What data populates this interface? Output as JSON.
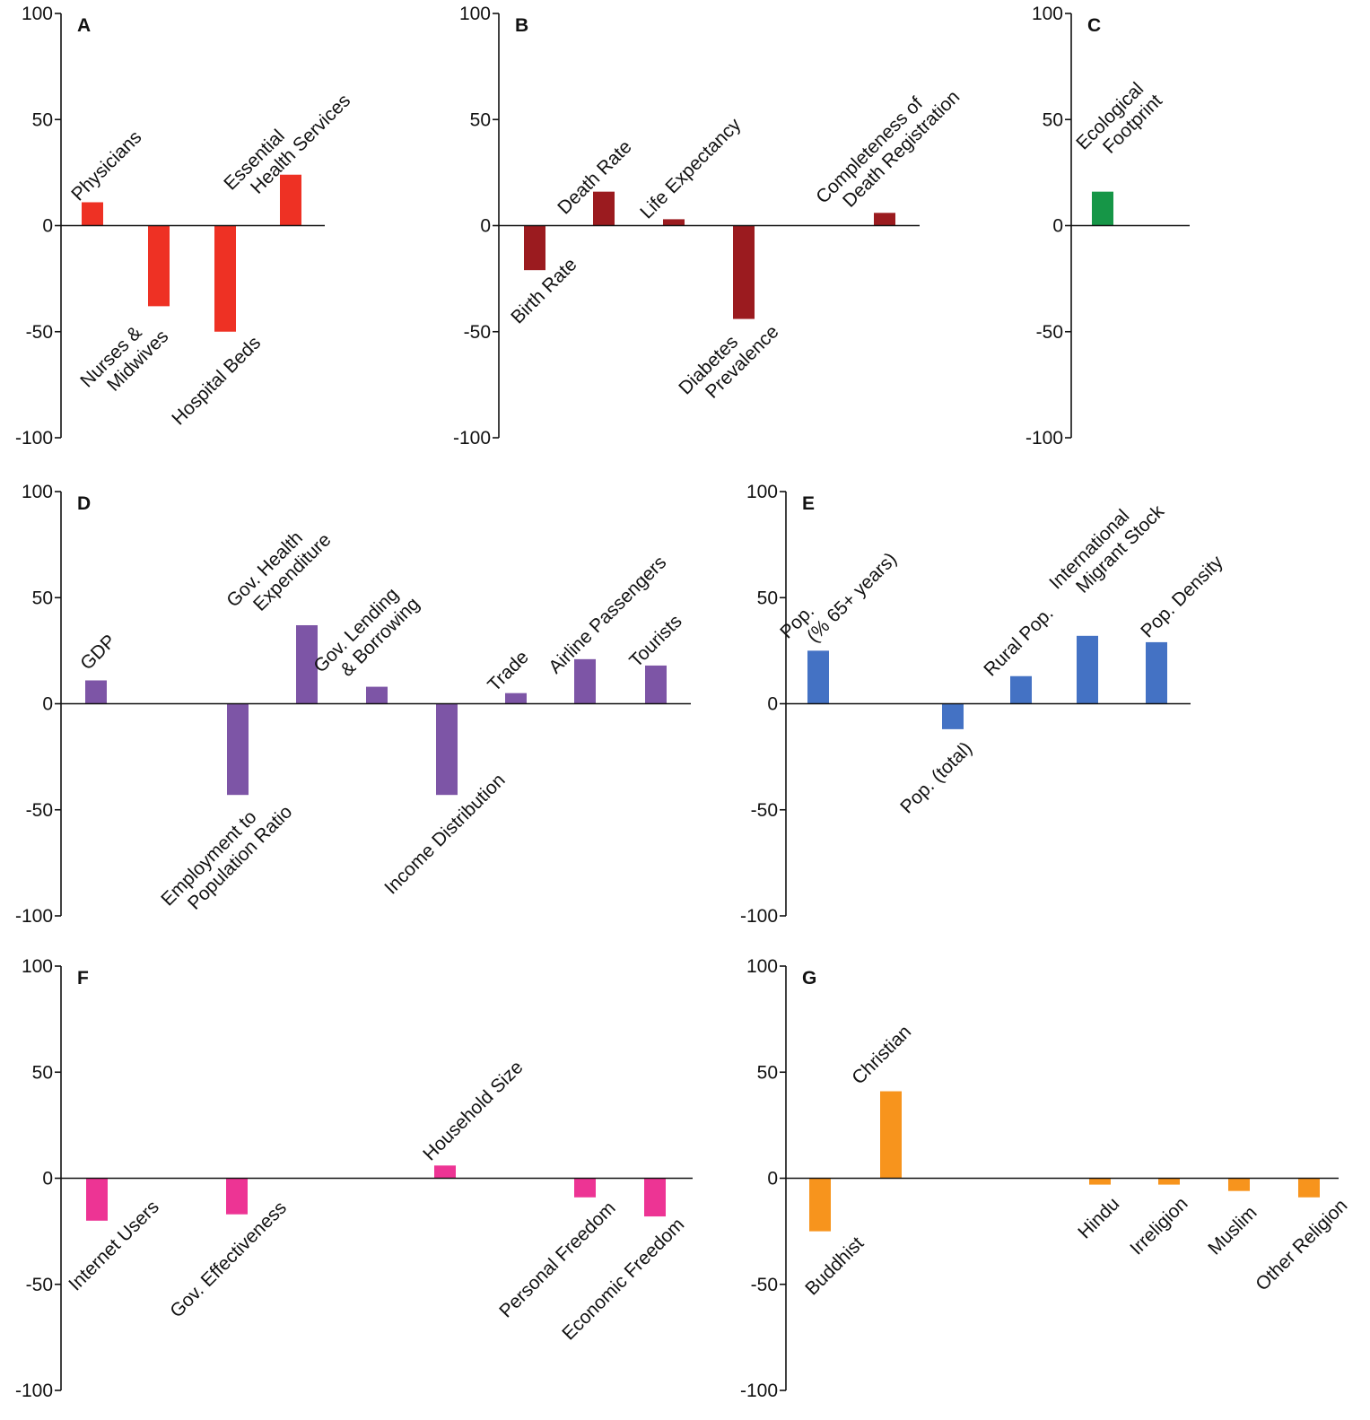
{
  "chart_data": [
    {
      "panel": "A",
      "type": "bar",
      "color": "#ee3124",
      "ylim": [
        -100,
        100
      ],
      "yticks": [
        "100",
        "50",
        "0",
        "-50",
        "-100"
      ],
      "categories": [
        {
          "label": [
            "Physicians"
          ],
          "value": 11
        },
        {
          "label": [
            "Nurses &",
            "Midwives"
          ],
          "value": -38
        },
        {
          "label": [
            "Hospital Beds"
          ],
          "value": -50
        },
        {
          "label": [
            "Essential",
            "Health Services"
          ],
          "value": 24
        }
      ]
    },
    {
      "panel": "B",
      "type": "bar",
      "color": "#9b1b1f",
      "ylim": [
        -100,
        100
      ],
      "yticks": [
        "100",
        "50",
        "0",
        "-50",
        "-100"
      ],
      "categories": [
        {
          "label": [
            "Birth Rate"
          ],
          "value": -21
        },
        {
          "label": [
            "Death Rate"
          ],
          "value": 16
        },
        {
          "label": [
            "Life Expectancy"
          ],
          "value": 3
        },
        {
          "label": [
            "Diabetes",
            "Prevalence"
          ],
          "value": -44
        },
        {
          "label": [
            "Completeness of",
            "Death Registration"
          ],
          "value": 6
        }
      ]
    },
    {
      "panel": "C",
      "type": "bar",
      "color": "#169647",
      "ylim": [
        -100,
        100
      ],
      "yticks": [
        "100",
        "50",
        "0",
        "-50",
        "-100"
      ],
      "categories": [
        {
          "label": [
            "Ecological",
            "Footprint"
          ],
          "value": 16
        }
      ]
    },
    {
      "panel": "D",
      "type": "bar",
      "color": "#7d55a6",
      "ylim": [
        -100,
        100
      ],
      "yticks": [
        "100",
        "50",
        "0",
        "-50",
        "-100"
      ],
      "categories": [
        {
          "label": [
            "GDP"
          ],
          "value": 11
        },
        {
          "label": [
            "Employment to",
            "Population Ratio"
          ],
          "value": -43
        },
        {
          "label": [
            "Gov. Health",
            "Expenditure"
          ],
          "value": 37
        },
        {
          "label": [
            "Gov. Lending",
            "& Borrowing"
          ],
          "value": 8
        },
        {
          "label": [
            "Income Distribution"
          ],
          "value": -43
        },
        {
          "label": [
            "Trade"
          ],
          "value": 5
        },
        {
          "label": [
            "Airline Passengers"
          ],
          "value": 21
        },
        {
          "label": [
            "Tourists"
          ],
          "value": 18
        }
      ]
    },
    {
      "panel": "E",
      "type": "bar",
      "color": "#4472c4",
      "ylim": [
        -100,
        100
      ],
      "yticks": [
        "100",
        "50",
        "0",
        "-50",
        "-100"
      ],
      "categories": [
        {
          "label": [
            "Pop.",
            "(% 65+ years)"
          ],
          "value": 25
        },
        {
          "label": [
            "Pop. (total)"
          ],
          "value": -12
        },
        {
          "label": [
            "Rural Pop."
          ],
          "value": 13
        },
        {
          "label": [
            "International",
            "Migrant Stock"
          ],
          "value": 32
        },
        {
          "label": [
            "Pop. Density"
          ],
          "value": 29
        }
      ]
    },
    {
      "panel": "F",
      "type": "bar",
      "color": "#ed3494",
      "ylim": [
        -100,
        100
      ],
      "yticks": [
        "100",
        "50",
        "0",
        "-50",
        "-100"
      ],
      "categories": [
        {
          "label": [
            "Internet Users"
          ],
          "value": -20
        },
        {
          "label": [
            "Gov. Effectiveness"
          ],
          "value": -17
        },
        {
          "label": [
            "Household Size"
          ],
          "value": 6
        },
        {
          "label": [
            "Personal Freedom"
          ],
          "value": -9
        },
        {
          "label": [
            "Economic Freedom"
          ],
          "value": -18
        }
      ]
    },
    {
      "panel": "G",
      "type": "bar",
      "color": "#f7941d",
      "ylim": [
        -100,
        100
      ],
      "yticks": [
        "100",
        "50",
        "0",
        "-50",
        "-100"
      ],
      "categories": [
        {
          "label": [
            "Buddhist"
          ],
          "value": -25
        },
        {
          "label": [
            "Christian"
          ],
          "value": 41
        },
        {
          "label": [
            "Hindu"
          ],
          "value": -3
        },
        {
          "label": [
            "Irreligion"
          ],
          "value": -3
        },
        {
          "label": [
            "Muslim"
          ],
          "value": -6
        },
        {
          "label": [
            "Other Religion"
          ],
          "value": -9
        }
      ]
    }
  ]
}
